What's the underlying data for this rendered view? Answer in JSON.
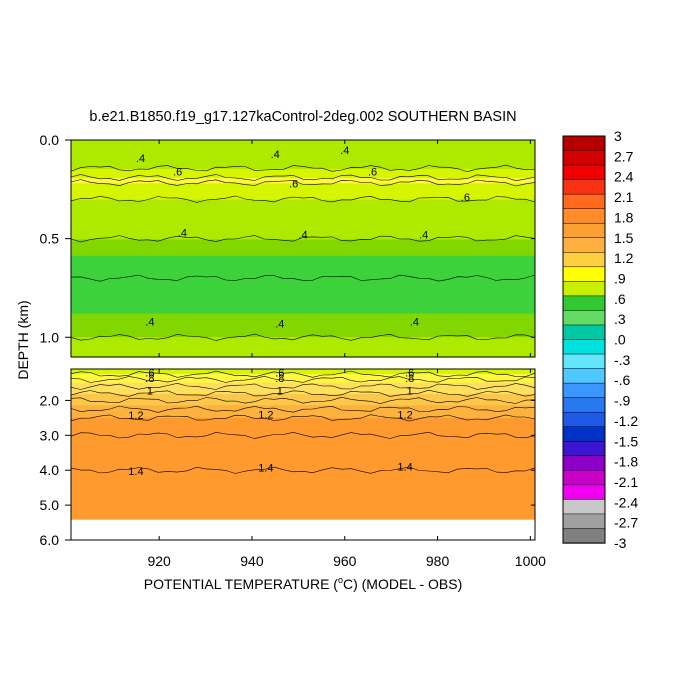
{
  "chart_data": {
    "type": "heatmap",
    "title": "b.e21.B1850.f19_g17.127kaControl-2deg.002 SOUTHERN BASIN",
    "xlabel_pre": "POTENTIAL TEMPERATURE (",
    "xlabel_sup": "o",
    "xlabel_post": "C) (MODEL - OBS)",
    "ylabel": "DEPTH (km)",
    "xlim": [
      901,
      1001
    ],
    "x_ticks": [
      920,
      940,
      960,
      980,
      1000
    ],
    "x_tick_labels": [
      "920",
      "940",
      "960",
      "980",
      "1000"
    ],
    "upper_panel": {
      "ylim": [
        0.0,
        1.1
      ],
      "y_ticks": [
        0.0,
        0.5,
        1.0
      ],
      "y_tick_labels": [
        "0.0",
        "0.5",
        "1.0"
      ]
    },
    "lower_panel": {
      "ylim": [
        1.1,
        6.0
      ],
      "y_ticks": [
        2.0,
        3.0,
        4.0,
        5.0,
        6.0
      ],
      "y_tick_labels": [
        "2.0",
        "3.0",
        "4.0",
        "5.0",
        "6.0"
      ],
      "data_bottom_depth": 5.4
    },
    "contour_interval": 0.1,
    "colorbar": {
      "levels": [
        "3",
        "2.7",
        "2.4",
        "2.1",
        "1.8",
        "1.5",
        "1.2",
        ".9",
        ".6",
        ".3",
        ".0",
        "-.3",
        "-.6",
        "-.9",
        "-1.2",
        "-1.5",
        "-1.8",
        "-2.1",
        "-2.4",
        "-2.7",
        "-3"
      ],
      "min": -3,
      "max": 3,
      "step": 0.3
    },
    "depth_profile": [
      {
        "depth": 0.0,
        "value": 0.4
      },
      {
        "depth": 0.05,
        "value": 0.4
      },
      {
        "depth": 0.12,
        "value": 0.45
      },
      {
        "depth": 0.2,
        "value": 0.62
      },
      {
        "depth": 0.3,
        "value": 0.5
      },
      {
        "depth": 0.4,
        "value": 0.45
      },
      {
        "depth": 0.5,
        "value": 0.4
      },
      {
        "depth": 0.6,
        "value": 0.34
      },
      {
        "depth": 0.7,
        "value": 0.3
      },
      {
        "depth": 0.8,
        "value": 0.3
      },
      {
        "depth": 0.9,
        "value": 0.36
      },
      {
        "depth": 1.0,
        "value": 0.4
      },
      {
        "depth": 1.1,
        "value": 0.5
      },
      {
        "depth": 1.4,
        "value": 0.7
      },
      {
        "depth": 1.6,
        "value": 0.8
      },
      {
        "depth": 2.0,
        "value": 1.0
      },
      {
        "depth": 2.5,
        "value": 1.2
      },
      {
        "depth": 3.0,
        "value": 1.3
      },
      {
        "depth": 4.0,
        "value": 1.4
      },
      {
        "depth": 5.0,
        "value": 1.42
      },
      {
        "depth": 5.4,
        "value": 1.42
      }
    ],
    "upper_labels": [
      {
        "text": ".4",
        "x": 916,
        "depth": 0.09
      },
      {
        "text": ".4",
        "x": 945,
        "depth": 0.07
      },
      {
        "text": ".4",
        "x": 960,
        "depth": 0.05
      },
      {
        "text": ".6",
        "x": 924,
        "depth": 0.16
      },
      {
        "text": ".6",
        "x": 949,
        "depth": 0.22
      },
      {
        "text": ".6",
        "x": 966,
        "depth": 0.16
      },
      {
        "text": ".6",
        "x": 986,
        "depth": 0.29
      },
      {
        "text": ".4",
        "x": 925,
        "depth": 0.47
      },
      {
        "text": ".4",
        "x": 951,
        "depth": 0.48
      },
      {
        "text": ".4",
        "x": 977,
        "depth": 0.48
      },
      {
        "text": ".4",
        "x": 918,
        "depth": 0.92
      },
      {
        "text": ".4",
        "x": 946,
        "depth": 0.93
      },
      {
        "text": ".4",
        "x": 975,
        "depth": 0.92
      }
    ],
    "lower_labels": [
      {
        "text": ".6",
        "x": 918,
        "depth": 1.2
      },
      {
        "text": ".8",
        "x": 918,
        "depth": 1.36
      },
      {
        "text": ".6",
        "x": 946,
        "depth": 1.2
      },
      {
        "text": ".8",
        "x": 946,
        "depth": 1.36
      },
      {
        "text": ".6",
        "x": 974,
        "depth": 1.2
      },
      {
        "text": ".8",
        "x": 974,
        "depth": 1.36
      },
      {
        "text": "1",
        "x": 918,
        "depth": 1.72
      },
      {
        "text": "1",
        "x": 946,
        "depth": 1.72
      },
      {
        "text": "1",
        "x": 974,
        "depth": 1.72
      },
      {
        "text": "1.2",
        "x": 915,
        "depth": 2.42
      },
      {
        "text": "1.2",
        "x": 943,
        "depth": 2.4
      },
      {
        "text": "1.2",
        "x": 973,
        "depth": 2.4
      },
      {
        "text": "1.4",
        "x": 915,
        "depth": 4.02
      },
      {
        "text": "1.4",
        "x": 943,
        "depth": 3.92
      },
      {
        "text": "1.4",
        "x": 973,
        "depth": 3.9
      }
    ],
    "grid": false,
    "legend_placement": "right"
  }
}
